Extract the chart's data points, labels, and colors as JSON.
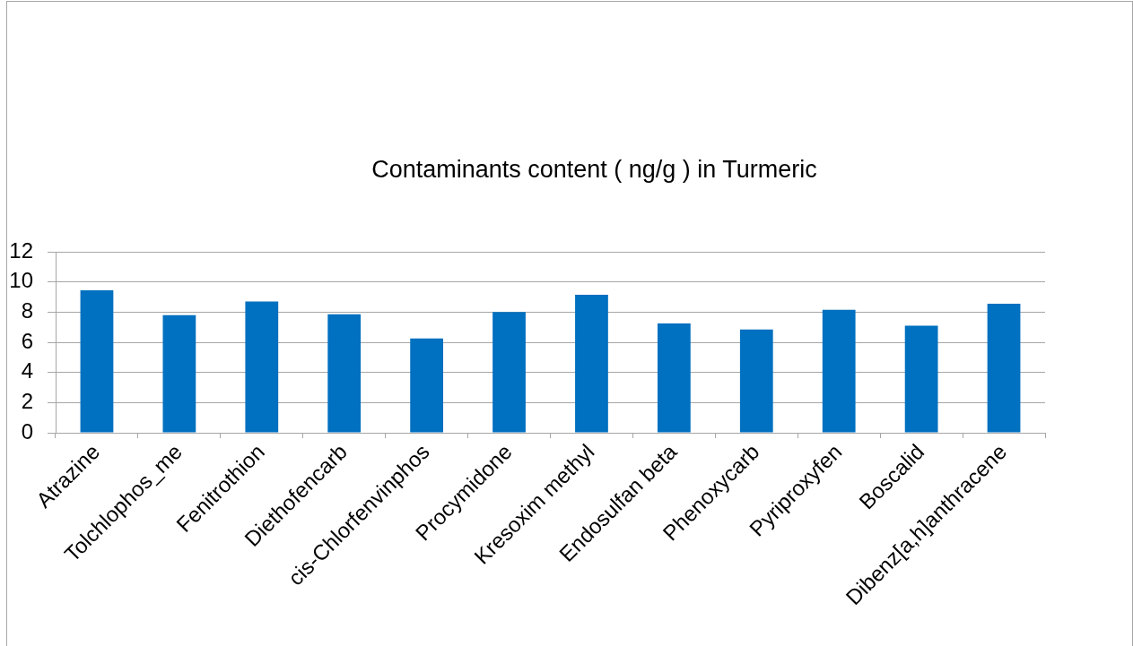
{
  "chart_data": {
    "type": "bar",
    "title": "Contaminants content ( ng/g ) in Turmeric",
    "categories": [
      "Atrazine",
      "Tolchlophos_me",
      "Fenitrothion",
      "Diethofencarb",
      "cis-Chlorfenvinphos",
      "Procymidone",
      "Kresoxim methyl",
      "Endosulfan beta",
      "Phenoxycarb",
      "Pyriproxyfen",
      "Boscalid",
      "Dibenz[a,h]anthracene"
    ],
    "values": [
      9.45,
      7.8,
      8.7,
      7.85,
      6.25,
      8.0,
      9.15,
      7.25,
      6.85,
      8.15,
      7.1,
      8.55
    ],
    "color": "#0070c0",
    "ylim": [
      0,
      12
    ],
    "yticks": [
      0,
      2,
      4,
      6,
      8,
      10,
      12
    ],
    "grid": "y"
  }
}
